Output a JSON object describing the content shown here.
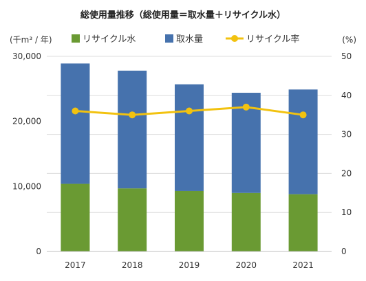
{
  "chart_data": {
    "type": "bar",
    "stacked": true,
    "title": "総使用量推移（総使用量＝取水量＋リサイクル水）",
    "y_left_label": "(千m³ / 年)",
    "y_right_label": "(%)",
    "categories": [
      "2017",
      "2018",
      "2019",
      "2020",
      "2021"
    ],
    "series": [
      {
        "name": "リサイクル水",
        "kind": "bar",
        "axis": "left",
        "color": "#6a9a33",
        "values": [
          10400,
          9700,
          9300,
          9000,
          8800
        ]
      },
      {
        "name": "取水量",
        "kind": "bar",
        "axis": "left",
        "color": "#4672ad",
        "values": [
          18500,
          18100,
          16400,
          15400,
          16100
        ]
      },
      {
        "name": "リサイクル率",
        "kind": "line",
        "axis": "right",
        "color": "#f2c20f",
        "values": [
          36,
          35,
          36,
          37,
          35
        ]
      }
    ],
    "y_left": {
      "min": 0,
      "max": 30000,
      "ticks": [
        0,
        10000,
        20000,
        30000
      ],
      "tick_labels": [
        "0",
        "10,000",
        "20,000",
        "30,000"
      ]
    },
    "y_right": {
      "min": 0,
      "max": 50,
      "ticks": [
        0,
        10,
        20,
        30,
        40,
        50
      ],
      "tick_labels": [
        "0",
        "10",
        "20",
        "30",
        "40",
        "50"
      ]
    },
    "legend_position": "top",
    "grid": true
  }
}
